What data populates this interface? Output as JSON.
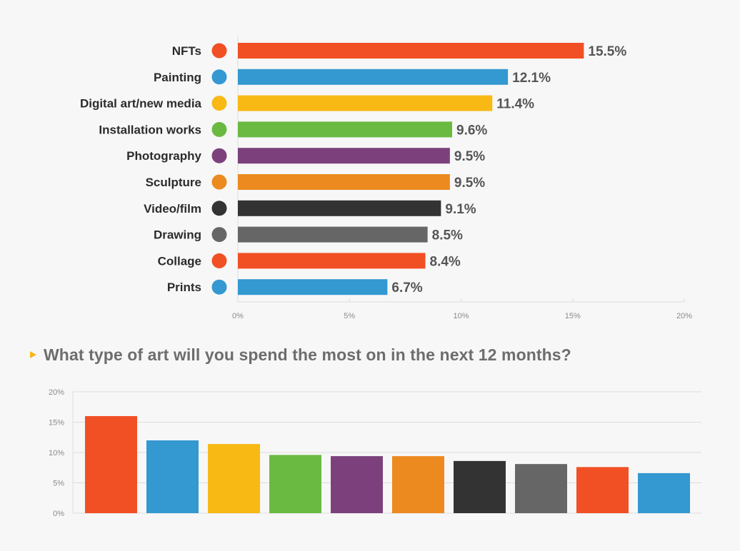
{
  "question": "What type of art will you spend the most on in the next 12 months?",
  "chart_data": [
    {
      "type": "bar",
      "orientation": "horizontal",
      "categories": [
        "NFTs",
        "Painting",
        "Digital art/new media",
        "Installation works",
        "Photography",
        "Sculpture",
        "Video/film",
        "Drawing",
        "Collage",
        "Prints"
      ],
      "values": [
        15.5,
        12.1,
        11.4,
        9.6,
        9.5,
        9.5,
        9.1,
        8.5,
        8.4,
        6.7
      ],
      "value_labels": [
        "15.5%",
        "12.1%",
        "11.4%",
        "9.6%",
        "9.5%",
        "9.5%",
        "9.1%",
        "8.5%",
        "8.4%",
        "6.7%"
      ],
      "colors": [
        "#f15025",
        "#3498d1",
        "#f8b915",
        "#6aba42",
        "#7c417d",
        "#ec8a1f",
        "#333333",
        "#666666",
        "#f15025",
        "#3498d1"
      ],
      "xlim": [
        0,
        20
      ],
      "x_ticks": [
        0,
        5,
        10,
        15,
        20
      ],
      "x_tick_labels": [
        "0%",
        "5%",
        "10%",
        "15%",
        "20%"
      ],
      "legend": "category dots beside labels",
      "grid": false
    },
    {
      "type": "bar",
      "orientation": "vertical",
      "values": [
        16,
        12,
        11.4,
        9.6,
        9.4,
        9.4,
        8.6,
        8.1,
        7.6,
        6.6
      ],
      "colors": [
        "#f15025",
        "#3498d1",
        "#f8b915",
        "#6aba42",
        "#7c417d",
        "#ec8a1f",
        "#333333",
        "#666666",
        "#f15025",
        "#3498d1"
      ],
      "ylim": [
        0,
        20
      ],
      "y_ticks": [
        0,
        5,
        10,
        15,
        20
      ],
      "y_tick_labels": [
        "0%",
        "5%",
        "10%",
        "15%",
        "20%"
      ],
      "grid": true
    }
  ]
}
